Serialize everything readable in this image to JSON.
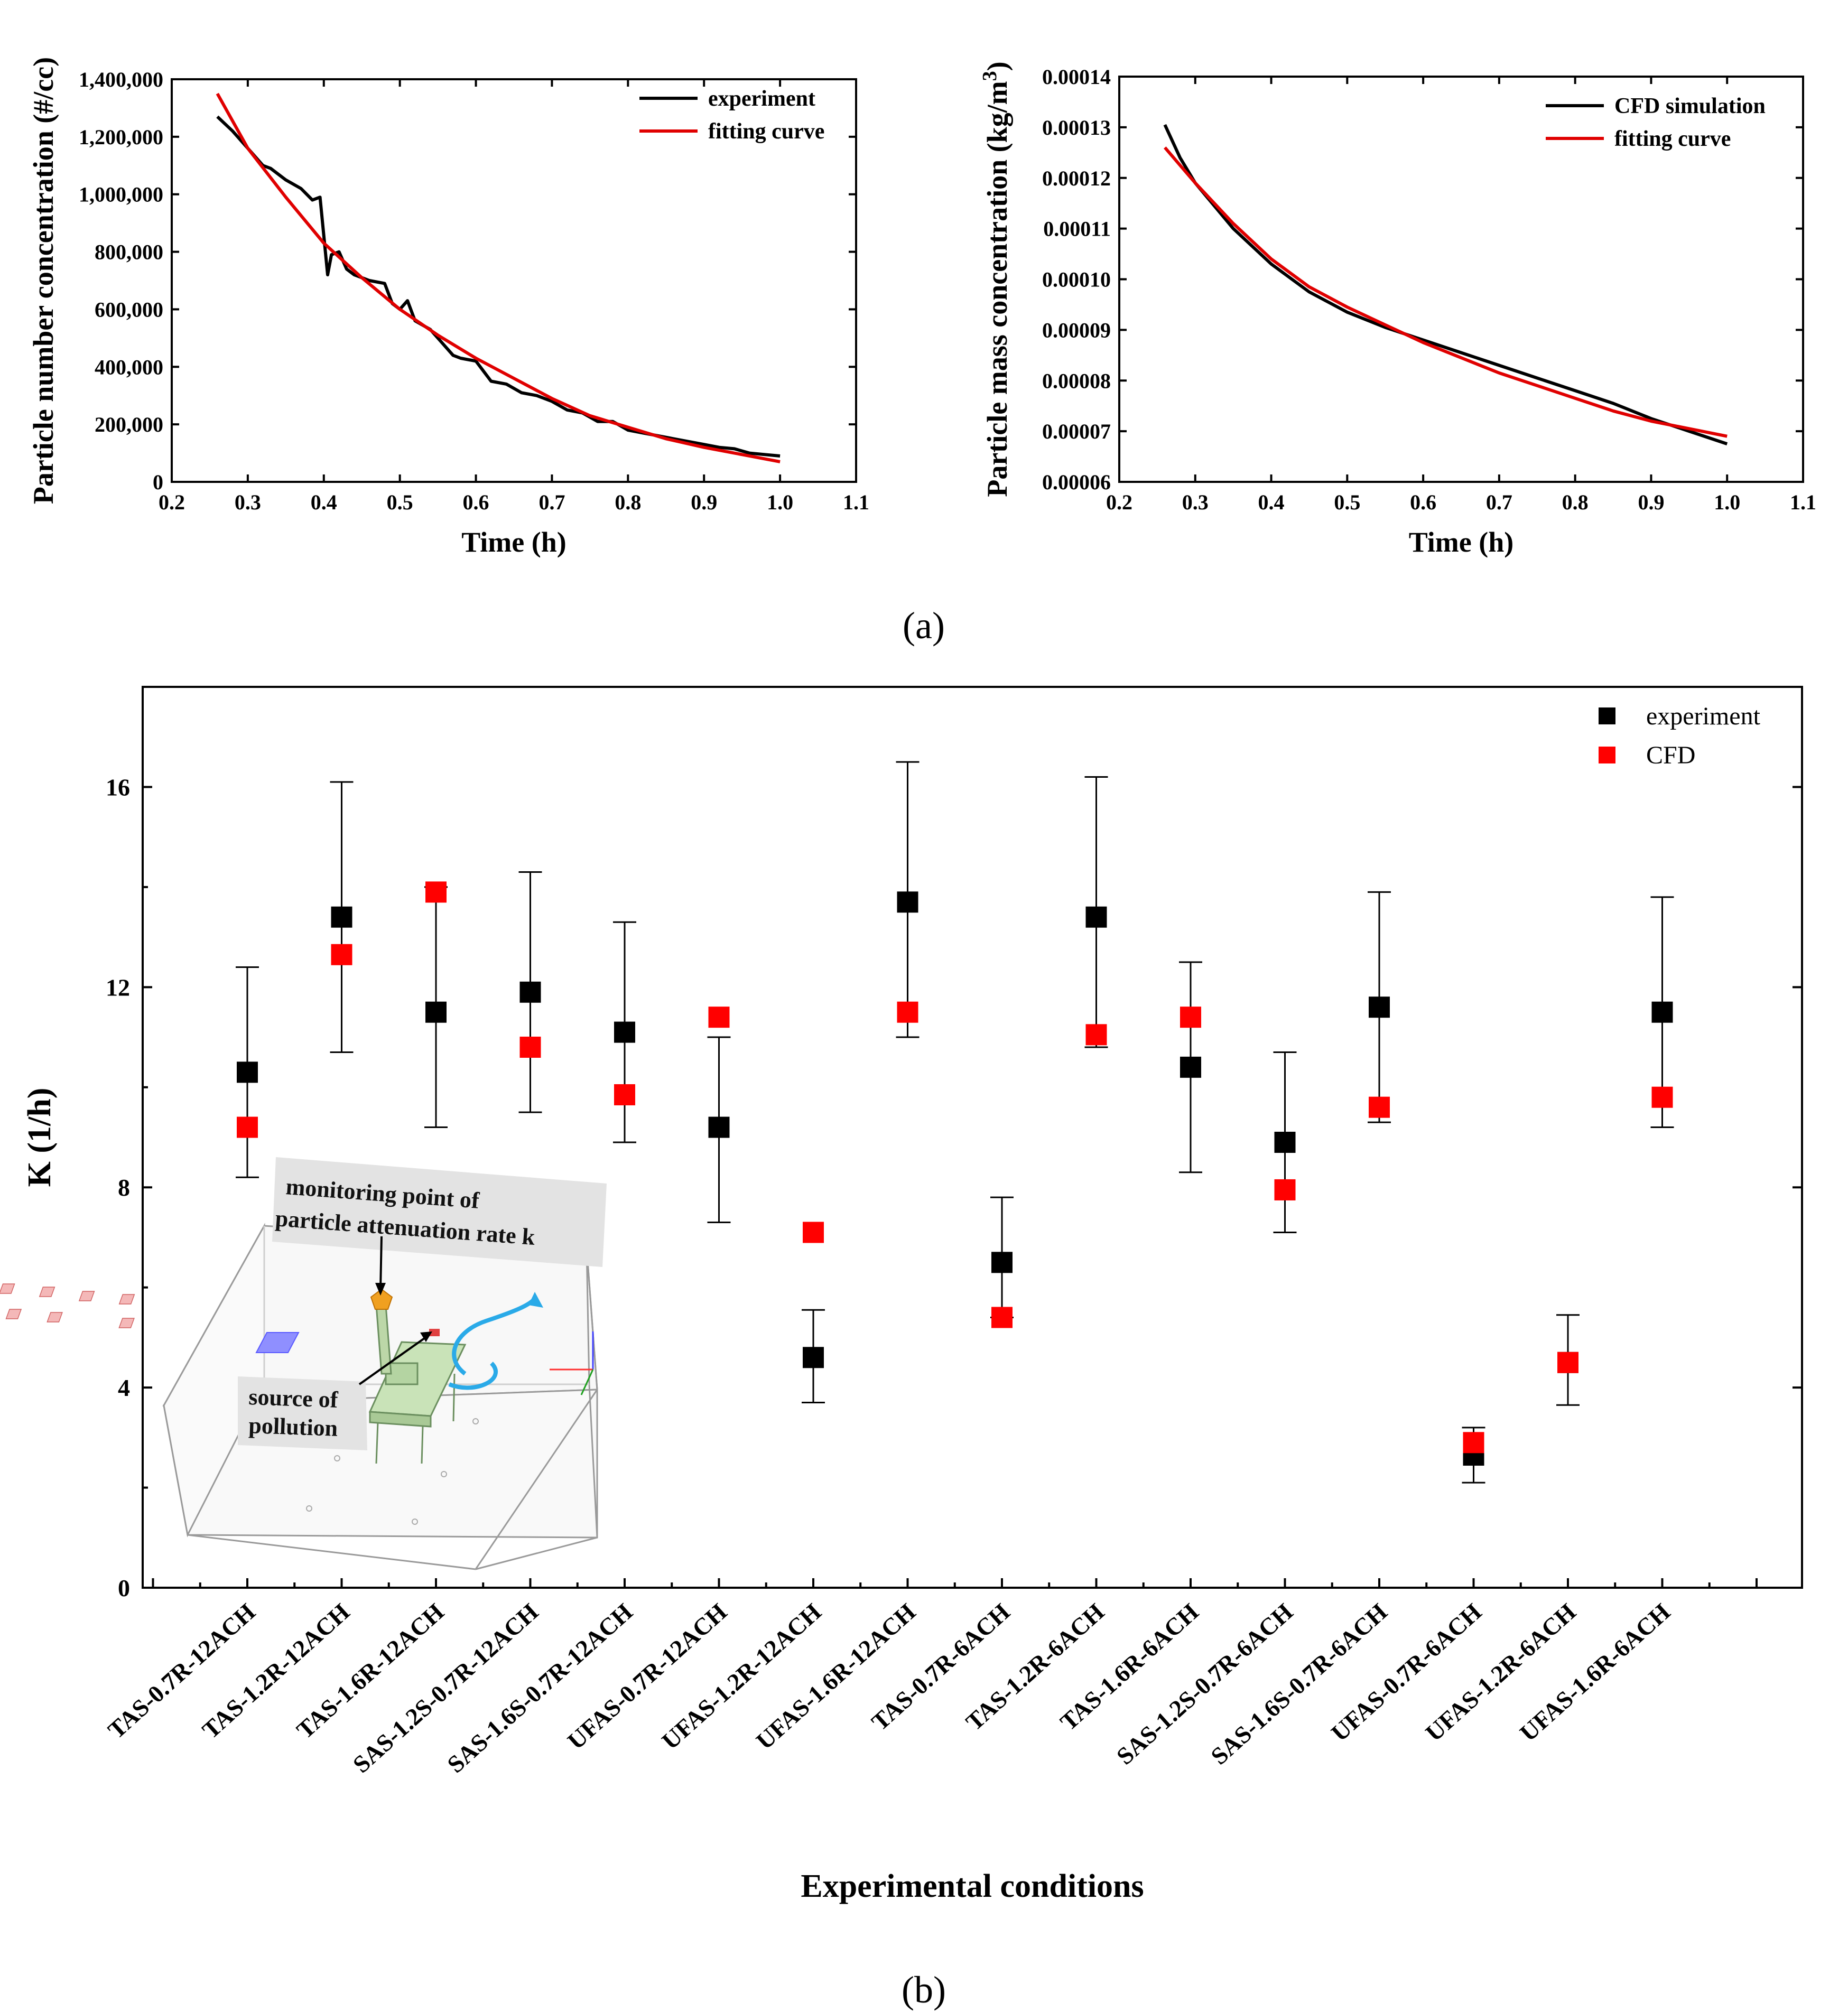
{
  "captions": {
    "a": "(a)",
    "b": "(b)"
  },
  "colors": {
    "experiment": "#000000",
    "fit": "#e00000",
    "cfd": "#ff0000"
  },
  "inset": {
    "monitor_label_line1": "monitoring point of",
    "monitor_label_line2": "particle attenuation rate k",
    "source_label_line1": "source of",
    "source_label_line2": "pollution"
  },
  "chart_data": [
    {
      "id": "a-left",
      "type": "line",
      "xlabel": "Time (h)",
      "ylabel": "Particle number concentration (#/cc)",
      "xlim": [
        0.2,
        1.1
      ],
      "ylim": [
        0,
        1400000
      ],
      "xticks": [
        0.2,
        0.3,
        0.4,
        0.5,
        0.6,
        0.7,
        0.8,
        0.9,
        1.0,
        1.1
      ],
      "xtick_labels": [
        "0.2",
        "0.3",
        "0.4",
        "0.5",
        "0.6",
        "0.7",
        "0.8",
        "0.9",
        "1.0",
        "1.1"
      ],
      "yticks": [
        0,
        200000,
        400000,
        600000,
        800000,
        1000000,
        1200000,
        1400000
      ],
      "ytick_labels": [
        "0",
        "200,000",
        "400,000",
        "600,000",
        "800,000",
        "1,000,000",
        "1,200,000",
        "1,400,000"
      ],
      "legend": [
        "experiment",
        "fitting curve"
      ],
      "series": [
        {
          "name": "experiment",
          "x": [
            0.26,
            0.28,
            0.3,
            0.32,
            0.33,
            0.35,
            0.37,
            0.385,
            0.395,
            0.405,
            0.41,
            0.42,
            0.43,
            0.44,
            0.46,
            0.48,
            0.49,
            0.5,
            0.51,
            0.52,
            0.54,
            0.56,
            0.57,
            0.58,
            0.6,
            0.62,
            0.64,
            0.66,
            0.68,
            0.7,
            0.72,
            0.74,
            0.76,
            0.78,
            0.8,
            0.82,
            0.84,
            0.86,
            0.88,
            0.9,
            0.92,
            0.94,
            0.96,
            0.98,
            1.0
          ],
          "y": [
            1270000,
            1220000,
            1160000,
            1100000,
            1090000,
            1050000,
            1020000,
            980000,
            990000,
            720000,
            790000,
            800000,
            740000,
            720000,
            700000,
            690000,
            620000,
            600000,
            630000,
            560000,
            530000,
            470000,
            440000,
            430000,
            420000,
            350000,
            340000,
            310000,
            300000,
            280000,
            250000,
            240000,
            210000,
            210000,
            180000,
            170000,
            160000,
            150000,
            140000,
            130000,
            120000,
            115000,
            100000,
            95000,
            90000
          ]
        },
        {
          "name": "fitting curve",
          "x": [
            0.26,
            0.3,
            0.35,
            0.4,
            0.45,
            0.5,
            0.55,
            0.6,
            0.65,
            0.7,
            0.75,
            0.8,
            0.85,
            0.9,
            0.95,
            1.0
          ],
          "y": [
            1350000,
            1160000,
            990000,
            830000,
            710000,
            600000,
            510000,
            430000,
            360000,
            290000,
            230000,
            190000,
            150000,
            120000,
            95000,
            70000
          ]
        }
      ]
    },
    {
      "id": "a-right",
      "type": "line",
      "xlabel": "Time (h)",
      "ylabel": "Particle mass concentration (kg/m",
      "ylabel_sup": "3",
      "ylabel_tail": ")",
      "xlim": [
        0.2,
        1.1
      ],
      "ylim": [
        6e-05,
        0.00014
      ],
      "xticks": [
        0.2,
        0.3,
        0.4,
        0.5,
        0.6,
        0.7,
        0.8,
        0.9,
        1.0,
        1.1
      ],
      "xtick_labels": [
        "0.2",
        "0.3",
        "0.4",
        "0.5",
        "0.6",
        "0.7",
        "0.8",
        "0.9",
        "1.0",
        "1.1"
      ],
      "yticks": [
        6e-05,
        7e-05,
        8e-05,
        9e-05,
        0.0001,
        0.00011,
        0.00012,
        0.00013,
        0.00014
      ],
      "ytick_labels": [
        "0.00006",
        "0.00007",
        "0.00008",
        "0.00009",
        "0.00010",
        "0.00011",
        "0.00012",
        "0.00013",
        "0.00014"
      ],
      "legend": [
        "CFD simulation",
        "fitting curve"
      ],
      "series": [
        {
          "name": "CFD simulation",
          "x": [
            0.26,
            0.28,
            0.3,
            0.35,
            0.4,
            0.45,
            0.5,
            0.55,
            0.6,
            0.65,
            0.7,
            0.75,
            0.8,
            0.85,
            0.9,
            0.95,
            1.0
          ],
          "y": [
            0.0001305,
            0.000124,
            0.000119,
            0.00011,
            0.000103,
            9.75e-05,
            9.35e-05,
            9.05e-05,
            8.8e-05,
            8.55e-05,
            8.3e-05,
            8.05e-05,
            7.8e-05,
            7.55e-05,
            7.25e-05,
            7e-05,
            6.75e-05
          ]
        },
        {
          "name": "fitting curve",
          "x": [
            0.26,
            0.3,
            0.35,
            0.4,
            0.45,
            0.5,
            0.55,
            0.6,
            0.65,
            0.7,
            0.75,
            0.8,
            0.85,
            0.9,
            0.95,
            1.0
          ],
          "y": [
            0.000126,
            0.000119,
            0.000111,
            0.000104,
            9.85e-05,
            9.45e-05,
            9.1e-05,
            8.75e-05,
            8.45e-05,
            8.15e-05,
            7.9e-05,
            7.65e-05,
            7.4e-05,
            7.2e-05,
            7.05e-05,
            6.9e-05
          ]
        }
      ]
    },
    {
      "id": "b",
      "type": "scatter",
      "xlabel": "Experimental conditions",
      "ylabel": "K (1/h)",
      "ylim": [
        0,
        18
      ],
      "yticks": [
        0,
        4,
        8,
        12,
        16
      ],
      "ytick_labels": [
        "0",
        "4",
        "8",
        "12",
        "16"
      ],
      "legend": [
        "experiment",
        "CFD"
      ],
      "categories": [
        "TAS-0.7R-12ACH",
        "TAS-1.2R-12ACH",
        "TAS-1.6R-12ACH",
        "SAS-1.2S-0.7R-12ACH",
        "SAS-1.6S-0.7R-12ACH",
        "UFAS-0.7R-12ACH",
        "UFAS-1.2R-12ACH",
        "UFAS-1.6R-12ACH",
        "TAS-0.7R-6ACH",
        "TAS-1.2R-6ACH",
        "TAS-1.6R-6ACH",
        "SAS-1.2S-0.7R-6ACH",
        "SAS-1.6S-0.7R-6ACH",
        "UFAS-0.7R-6ACH",
        "UFAS-1.2R-6ACH",
        "UFAS-1.6R-6ACH"
      ],
      "series": [
        {
          "name": "experiment",
          "values": [
            10.3,
            13.4,
            11.5,
            11.9,
            11.1,
            9.2,
            4.6,
            13.7,
            6.5,
            13.4,
            10.4,
            8.9,
            11.6,
            2.65,
            4.5,
            11.5
          ],
          "error_low": [
            8.2,
            10.7,
            9.2,
            9.5,
            8.9,
            7.3,
            3.7,
            11.0,
            5.4,
            10.8,
            8.3,
            7.1,
            9.3,
            2.1,
            3.65,
            9.2
          ],
          "error_high": [
            12.4,
            16.1,
            14.0,
            14.3,
            13.3,
            11.0,
            5.55,
            16.5,
            7.8,
            16.2,
            12.5,
            10.7,
            13.9,
            3.2,
            5.45,
            13.8
          ]
        },
        {
          "name": "CFD",
          "values": [
            9.2,
            12.65,
            13.9,
            10.8,
            9.85,
            11.4,
            7.1,
            11.5,
            5.4,
            11.05,
            11.4,
            7.95,
            9.6,
            2.9,
            4.5,
            9.8
          ]
        }
      ]
    }
  ]
}
